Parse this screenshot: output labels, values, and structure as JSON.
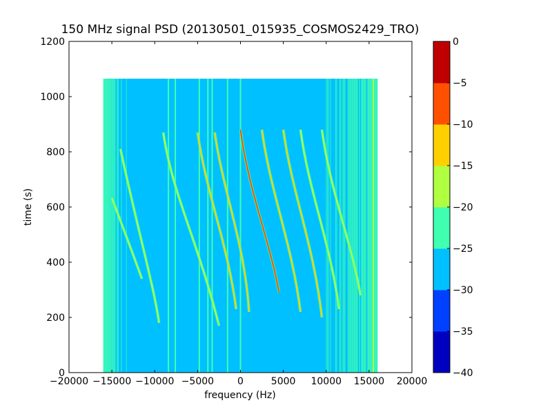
{
  "chart_data": {
    "type": "heatmap",
    "title": "150 MHz signal PSD (20130501_015935_COSMOS2429_TRO)",
    "xlabel": "frequency (Hz)",
    "ylabel": "time (s)",
    "xlim": [
      -20000,
      20000
    ],
    "ylim": [
      0,
      1200
    ],
    "x_ticks": [
      -20000,
      -15000,
      -10000,
      -5000,
      0,
      5000,
      10000,
      15000,
      20000
    ],
    "x_tick_labels": [
      "−20000",
      "−15000",
      "−10000",
      "−5000",
      "0",
      "5000",
      "10000",
      "15000",
      "20000"
    ],
    "y_ticks": [
      0,
      200,
      400,
      600,
      800,
      1000,
      1200
    ],
    "y_tick_labels": [
      "0",
      "200",
      "400",
      "600",
      "800",
      "1000",
      "1200"
    ],
    "data_extent": {
      "freq_range": [
        -16000,
        16000
      ],
      "time_range": [
        0,
        1065
      ]
    },
    "background_level": -27.5,
    "colorbar": {
      "levels": [
        -40,
        -35,
        -30,
        -25,
        -20,
        -15,
        -10,
        -5,
        0
      ],
      "tick_labels": [
        "−40",
        "−35",
        "−30",
        "−25",
        "−20",
        "−15",
        "−10",
        "−5",
        "0"
      ],
      "colors": [
        "#0000c0",
        "#0040ff",
        "#00c0ff",
        "#40ffb0",
        "#b0ff40",
        "#ffd000",
        "#ff5000",
        "#c00000"
      ]
    },
    "noise_bands": [
      {
        "freq_range": [
          -16000,
          -13000
        ],
        "level": -22.5
      },
      {
        "freq_range": [
          9000,
          16000
        ],
        "level": -22.5
      }
    ],
    "vertical_lines": [
      {
        "freq": -8400,
        "level": -22.5
      },
      {
        "freq": -7600,
        "level": -22.5
      },
      {
        "freq": -4800,
        "level": -22.5
      },
      {
        "freq": -3800,
        "level": -22.5
      },
      {
        "freq": -3300,
        "level": -22.5
      },
      {
        "freq": -1500,
        "level": -22.5
      },
      {
        "freq": 0,
        "level": -22.5
      },
      {
        "freq": 15500,
        "level": -17.5
      }
    ],
    "series": [
      {
        "curve": [
          [
            -15000,
            632
          ],
          [
            -13000,
            470
          ],
          [
            -11500,
            340
          ]
        ],
        "level": -17.5
      },
      {
        "curve": [
          [
            -14000,
            810
          ],
          [
            -12000,
            520
          ],
          [
            -10000,
            300
          ],
          [
            -9500,
            180
          ]
        ],
        "level": -17.5
      },
      {
        "curve": [
          [
            -9000,
            870
          ],
          [
            -8000,
            650
          ],
          [
            -5000,
            480
          ],
          [
            -2500,
            170
          ]
        ],
        "level": -17.5
      },
      {
        "curve": [
          [
            -5000,
            870
          ],
          [
            -4000,
            650
          ],
          [
            -1500,
            470
          ],
          [
            -500,
            230
          ]
        ],
        "level": -12.5
      },
      {
        "curve": [
          [
            -3000,
            870
          ],
          [
            -2000,
            650
          ],
          [
            500,
            470
          ],
          [
            1000,
            220
          ]
        ],
        "level": -12.5
      },
      {
        "curve": [
          [
            0,
            880
          ],
          [
            1000,
            650
          ],
          [
            3500,
            470
          ],
          [
            4500,
            290
          ]
        ],
        "level": -7.5
      },
      {
        "curve": [
          [
            2500,
            880
          ],
          [
            3500,
            650
          ],
          [
            6000,
            470
          ],
          [
            7000,
            220
          ]
        ],
        "level": -12.5
      },
      {
        "curve": [
          [
            5000,
            880
          ],
          [
            6000,
            650
          ],
          [
            8500,
            470
          ],
          [
            9500,
            200
          ]
        ],
        "level": -12.5
      },
      {
        "curve": [
          [
            7000,
            880
          ],
          [
            8000,
            650
          ],
          [
            10500,
            470
          ],
          [
            11500,
            230
          ]
        ],
        "level": -17.5
      },
      {
        "curve": [
          [
            9500,
            880
          ],
          [
            10500,
            650
          ],
          [
            13000,
            470
          ],
          [
            14000,
            280
          ]
        ],
        "level": -17.5
      }
    ]
  }
}
